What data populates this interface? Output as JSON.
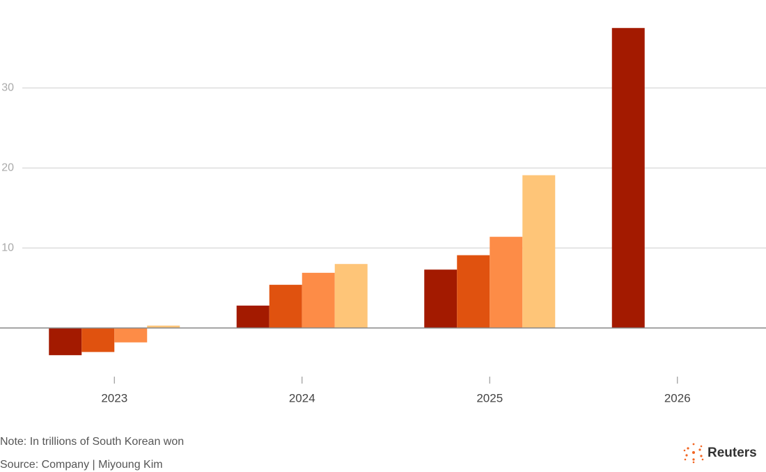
{
  "chart_data": {
    "type": "bar",
    "categories": [
      "2023",
      "2024",
      "2025",
      "2026"
    ],
    "series": [
      {
        "color": "#a31a00",
        "values": [
          -3.4,
          2.8,
          7.3,
          37.5
        ]
      },
      {
        "color": "#e0520f",
        "values": [
          -3.0,
          5.4,
          9.1,
          null
        ]
      },
      {
        "color": "#fd8c47",
        "values": [
          -1.8,
          6.9,
          11.4,
          null
        ]
      },
      {
        "color": "#fec578",
        "values": [
          0.3,
          8.0,
          19.1,
          null
        ]
      }
    ],
    "ylim": [
      -5,
      41
    ],
    "yticks": [
      10,
      20,
      30
    ],
    "grid": true,
    "note": "Note: In trillions of South Korean won",
    "source": "Source: Company | Miyoung Kim",
    "logo_text": "Reuters"
  }
}
